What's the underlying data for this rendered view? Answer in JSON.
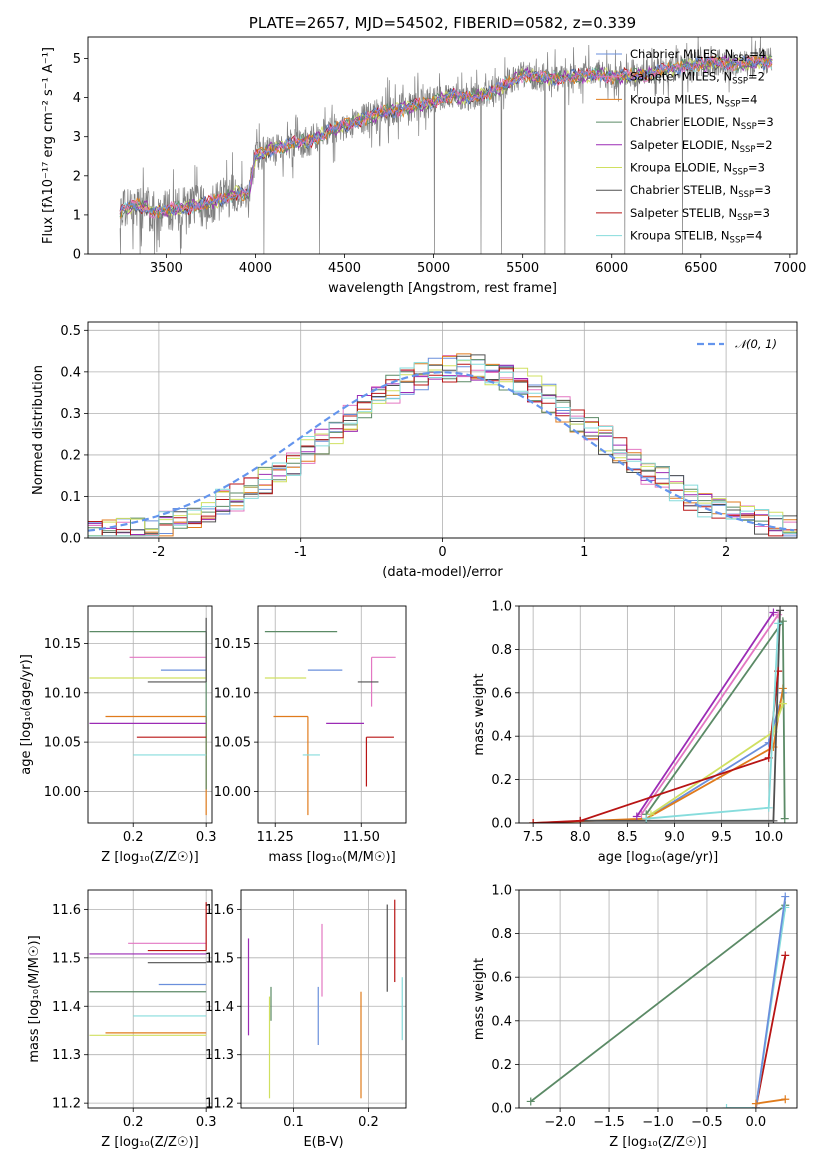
{
  "colors": {
    "chabrier_miles": "#6a8fdc",
    "salpeter_miles": "#e377c2",
    "kroupa_miles": "#e07b1c",
    "chabrier_elodie": "#5b8a66",
    "salpeter_elodie": "#9b2bb5",
    "kroupa_elodie": "#d0e060",
    "chabrier_stelib": "#505050",
    "salpeter_stelib": "#b81414",
    "kroupa_stelib": "#86dcdc",
    "data_gray": "#808080",
    "normal_curve": "#6495ed",
    "grid": "#b0b0b0"
  },
  "chart_data": [
    {
      "id": "spectrum",
      "type": "line",
      "title": "PLATE=2657, MJD=54502, FIBERID=0582, z=0.339",
      "xlabel": "wavelength [Angstrom, rest frame]",
      "ylabel": "Flux [fλ10⁻¹⁷ erg cm⁻² s⁻¹ A⁻¹]",
      "xlim": [
        3060,
        7040
      ],
      "ylim": [
        0,
        5.55
      ],
      "xticks": [
        3500,
        4000,
        4500,
        5000,
        5500,
        6000,
        6500,
        7000
      ],
      "yticks": [
        0,
        1,
        2,
        3,
        4,
        5
      ],
      "grid": false,
      "legend_position": "top-right",
      "legend": [
        {
          "name": "Chabrier MILES, N",
          "sub": "SSP",
          "n": "=4",
          "color_key": "chabrier_miles"
        },
        {
          "name": "Salpeter MILES, N",
          "sub": "SSP",
          "n": "=2",
          "color_key": "salpeter_miles"
        },
        {
          "name": "Kroupa MILES, N",
          "sub": "SSP",
          "n": "=4",
          "color_key": "kroupa_miles"
        },
        {
          "name": "Chabrier ELODIE, N",
          "sub": "SSP",
          "n": "=3",
          "color_key": "chabrier_elodie"
        },
        {
          "name": "Salpeter ELODIE, N",
          "sub": "SSP",
          "n": "=2",
          "color_key": "salpeter_elodie"
        },
        {
          "name": "Kroupa ELODIE, N",
          "sub": "SSP",
          "n": "=3",
          "color_key": "kroupa_elodie"
        },
        {
          "name": "Chabrier STELIB, N",
          "sub": "SSP",
          "n": "=3",
          "color_key": "chabrier_stelib"
        },
        {
          "name": "Salpeter STELIB, N",
          "sub": "SSP",
          "n": "=3",
          "color_key": "salpeter_stelib"
        },
        {
          "name": "Kroupa STELIB, N",
          "sub": "SSP",
          "n": "=4",
          "color_key": "kroupa_stelib"
        }
      ],
      "continuum": [
        [
          3240,
          1.1
        ],
        [
          3330,
          1.25
        ],
        [
          3420,
          1.1
        ],
        [
          3500,
          1.1
        ],
        [
          3600,
          1.2
        ],
        [
          3700,
          1.25
        ],
        [
          3800,
          1.4
        ],
        [
          3900,
          1.55
        ],
        [
          3960,
          1.55
        ],
        [
          4000,
          2.5
        ],
        [
          4100,
          2.7
        ],
        [
          4200,
          2.8
        ],
        [
          4300,
          2.9
        ],
        [
          4400,
          3.1
        ],
        [
          4500,
          3.3
        ],
        [
          4600,
          3.45
        ],
        [
          4700,
          3.6
        ],
        [
          4800,
          3.7
        ],
        [
          4900,
          3.8
        ],
        [
          5000,
          3.9
        ],
        [
          5100,
          4.05
        ],
        [
          5200,
          4.0
        ],
        [
          5300,
          4.1
        ],
        [
          5400,
          4.3
        ],
        [
          5500,
          4.6
        ],
        [
          5600,
          4.5
        ],
        [
          5700,
          4.5
        ],
        [
          5800,
          4.55
        ],
        [
          5900,
          4.6
        ],
        [
          6000,
          4.55
        ],
        [
          6100,
          4.55
        ],
        [
          6200,
          4.6
        ],
        [
          6300,
          4.7
        ],
        [
          6400,
          4.8
        ],
        [
          6500,
          4.85
        ],
        [
          6600,
          4.9
        ],
        [
          6700,
          4.85
        ],
        [
          6800,
          4.9
        ],
        [
          6900,
          4.95
        ]
      ]
    },
    {
      "id": "residuals",
      "type": "line",
      "xlabel": "(data-model)/error",
      "ylabel": "Normed distribution",
      "xlim": [
        -2.5,
        2.5
      ],
      "ylim": [
        0,
        0.52
      ],
      "xticks": [
        -2,
        -1,
        0,
        1,
        2
      ],
      "yticks": [
        0.0,
        0.1,
        0.2,
        0.3,
        0.4,
        0.5
      ],
      "grid": true,
      "legend_position": "top-right",
      "legend": [
        {
          "name": "𝒩(0, 1)",
          "color_key": "normal_curve"
        }
      ]
    },
    {
      "id": "age_vs_Z",
      "type": "scatter",
      "xlabel": "Z [log₁₀(Z/Z☉)]",
      "ylabel": "age  [log₁₀(age/yr)]",
      "xlim": [
        0.138,
        0.308
      ],
      "ylim": [
        9.968,
        10.188
      ],
      "xticks": [
        0.2,
        0.3
      ],
      "yticks": [
        10.0,
        10.05,
        10.1,
        10.15
      ],
      "grid": true,
      "points": [
        {
          "c": "chabrier_miles",
          "x": 0.3,
          "y": 10.123,
          "xerr": [
            0.062,
            0.0
          ],
          "yerr": [
            0.0,
            0.0
          ]
        },
        {
          "c": "salpeter_miles",
          "x": 0.3,
          "y": 10.136,
          "xerr": [
            0.105,
            0.0
          ],
          "yerr": [
            0.0,
            0.0
          ]
        },
        {
          "c": "kroupa_miles",
          "x": 0.3,
          "y": 10.076,
          "xerr": [
            0.138,
            0.0
          ],
          "yerr": [
            0.1,
            0.0
          ]
        },
        {
          "c": "chabrier_elodie",
          "x": 0.3,
          "y": 10.162,
          "xerr": [
            0.16,
            0.0
          ],
          "yerr": [
            0.16,
            0.0
          ]
        },
        {
          "c": "salpeter_elodie",
          "x": 0.3,
          "y": 10.069,
          "xerr": [
            0.16,
            0.0
          ],
          "yerr": [
            0.0,
            0.0
          ]
        },
        {
          "c": "kroupa_elodie",
          "x": 0.3,
          "y": 10.115,
          "xerr": [
            0.16,
            0.0
          ],
          "yerr": [
            0.0,
            0.0
          ]
        },
        {
          "c": "chabrier_stelib",
          "x": 0.3,
          "y": 10.111,
          "xerr": [
            0.08,
            0.0
          ],
          "yerr": [
            0.0,
            0.065
          ]
        },
        {
          "c": "salpeter_stelib",
          "x": 0.3,
          "y": 10.055,
          "xerr": [
            0.095,
            0.0
          ],
          "yerr": [
            0.0,
            0.0
          ]
        },
        {
          "c": "kroupa_stelib",
          "x": 0.3,
          "y": 10.037,
          "xerr": [
            0.1,
            0.0
          ],
          "yerr": [
            0.0,
            0.0
          ]
        }
      ]
    },
    {
      "id": "age_vs_mass",
      "type": "scatter",
      "xlabel": "mass [log₁₀(M/M☉)]",
      "ylabel": "",
      "xlim": [
        11.2,
        11.63
      ],
      "ylim": [
        9.968,
        10.188
      ],
      "xticks": [
        11.25,
        11.5
      ],
      "yticks": [
        10.0,
        10.05,
        10.1,
        10.15
      ],
      "grid": true,
      "points": [
        {
          "c": "chabrier_miles",
          "x": 11.445,
          "y": 10.123,
          "xerr": [
            0.1,
            0.0
          ],
          "yerr": [
            0.0,
            0.0
          ]
        },
        {
          "c": "salpeter_miles",
          "x": 11.53,
          "y": 10.136,
          "xerr": [
            0.0,
            0.07
          ],
          "yerr": [
            0.05,
            0.0
          ]
        },
        {
          "c": "kroupa_miles",
          "x": 11.345,
          "y": 10.076,
          "xerr": [
            0.1,
            0.0
          ],
          "yerr": [
            0.1,
            0.0
          ]
        },
        {
          "c": "chabrier_elodie",
          "x": 11.43,
          "y": 10.162,
          "xerr": [
            0.21,
            0.0
          ],
          "yerr": [
            0.0,
            0.0
          ]
        },
        {
          "c": "salpeter_elodie",
          "x": 11.508,
          "y": 10.069,
          "xerr": [
            0.11,
            0.0
          ],
          "yerr": [
            0.0,
            0.0
          ]
        },
        {
          "c": "kroupa_elodie",
          "x": 11.34,
          "y": 10.115,
          "xerr": [
            0.12,
            0.0
          ],
          "yerr": [
            0.0,
            0.0
          ]
        },
        {
          "c": "chabrier_stelib",
          "x": 11.49,
          "y": 10.111,
          "xerr": [
            0.0,
            0.06
          ],
          "yerr": [
            0.0,
            0.0
          ]
        },
        {
          "c": "salpeter_stelib",
          "x": 11.515,
          "y": 10.055,
          "xerr": [
            0.0,
            0.08
          ],
          "yerr": [
            0.05,
            0.0
          ]
        },
        {
          "c": "kroupa_stelib",
          "x": 11.38,
          "y": 10.037,
          "xerr": [
            0.05,
            0.0
          ],
          "yerr": [
            0.0,
            0.0
          ]
        }
      ]
    },
    {
      "id": "mass_weight_vs_age",
      "type": "line",
      "xlabel": "age  [log₁₀(age/yr)]",
      "ylabel": "mass weight",
      "xlim": [
        7.35,
        10.3
      ],
      "ylim": [
        0,
        1.0
      ],
      "xticks": [
        7.5,
        8.0,
        8.5,
        9.0,
        9.5,
        10.0
      ],
      "yticks": [
        0.0,
        0.2,
        0.4,
        0.6,
        0.8,
        1.0
      ],
      "grid": true,
      "series": [
        {
          "c": "chabrier_miles",
          "x": [
            8.7,
            10.0,
            10.15
          ],
          "y": [
            0.02,
            0.37,
            0.6
          ]
        },
        {
          "c": "salpeter_miles",
          "x": [
            8.65,
            10.1
          ],
          "y": [
            0.04,
            0.96
          ]
        },
        {
          "c": "kroupa_miles",
          "x": [
            7.5,
            8.7,
            10.05,
            10.15
          ],
          "y": [
            0.0,
            0.02,
            0.35,
            0.62
          ]
        },
        {
          "c": "chabrier_elodie",
          "x": [
            8.7,
            10.15,
            10.17
          ],
          "y": [
            0.04,
            0.93,
            0.02
          ]
        },
        {
          "c": "salpeter_elodie",
          "x": [
            8.6,
            10.05
          ],
          "y": [
            0.03,
            0.97
          ]
        },
        {
          "c": "kroupa_elodie",
          "x": [
            8.75,
            10.05,
            10.15
          ],
          "y": [
            0.04,
            0.42,
            0.55
          ]
        },
        {
          "c": "chabrier_stelib",
          "x": [
            8.0,
            10.05,
            10.12
          ],
          "y": [
            0.01,
            0.01,
            0.98
          ]
        },
        {
          "c": "salpeter_stelib",
          "x": [
            7.5,
            8.0,
            10.0,
            10.1
          ],
          "y": [
            0.0,
            0.01,
            0.3,
            0.7
          ]
        },
        {
          "c": "kroupa_stelib",
          "x": [
            8.7,
            10.0,
            10.1
          ],
          "y": [
            0.02,
            0.07,
            0.92
          ]
        }
      ]
    },
    {
      "id": "mass_vs_Z",
      "type": "scatter",
      "xlabel": "Z [log₁₀(Z/Z☉)]",
      "ylabel": "mass [log₁₀(M/M☉)]",
      "xlim": [
        0.138,
        0.308
      ],
      "ylim": [
        11.19,
        11.64
      ],
      "xticks": [
        0.2,
        0.3
      ],
      "yticks": [
        11.2,
        11.3,
        11.4,
        11.5,
        11.6
      ],
      "grid": true,
      "points": [
        {
          "c": "chabrier_miles",
          "x": 0.3,
          "y": 11.445,
          "xerr": [
            0.065,
            0.0
          ],
          "yerr": [
            0.0,
            0.0
          ]
        },
        {
          "c": "salpeter_miles",
          "x": 0.3,
          "y": 11.53,
          "xerr": [
            0.107,
            0.0
          ],
          "yerr": [
            0.0,
            0.0
          ]
        },
        {
          "c": "kroupa_miles",
          "x": 0.3,
          "y": 11.345,
          "xerr": [
            0.138,
            0.0
          ],
          "yerr": [
            0.0,
            0.0
          ]
        },
        {
          "c": "chabrier_elodie",
          "x": 0.3,
          "y": 11.43,
          "xerr": [
            0.16,
            0.0
          ],
          "yerr": [
            0.0,
            0.0
          ]
        },
        {
          "c": "salpeter_elodie",
          "x": 0.3,
          "y": 11.508,
          "xerr": [
            0.16,
            0.0
          ],
          "yerr": [
            0.0,
            0.0
          ]
        },
        {
          "c": "kroupa_elodie",
          "x": 0.3,
          "y": 11.34,
          "xerr": [
            0.16,
            0.0
          ],
          "yerr": [
            0.0,
            0.0
          ]
        },
        {
          "c": "chabrier_stelib",
          "x": 0.3,
          "y": 11.49,
          "xerr": [
            0.08,
            0.0
          ],
          "yerr": [
            0.0,
            0.0
          ]
        },
        {
          "c": "salpeter_stelib",
          "x": 0.3,
          "y": 11.515,
          "xerr": [
            0.08,
            0.0
          ],
          "yerr": [
            0.0,
            0.1
          ]
        },
        {
          "c": "kroupa_stelib",
          "x": 0.3,
          "y": 11.38,
          "xerr": [
            0.1,
            0.0
          ],
          "yerr": [
            0.0,
            0.0
          ]
        }
      ]
    },
    {
      "id": "mass_vs_ebv",
      "type": "scatter",
      "xlabel": "E(B-V)",
      "ylabel": "",
      "xlim": [
        0.03,
        0.25
      ],
      "ylim": [
        11.19,
        11.64
      ],
      "xticks": [
        0.1,
        0.2
      ],
      "yticks": [
        11.2,
        11.3,
        11.4,
        11.5,
        11.6
      ],
      "grid": true,
      "points": [
        {
          "c": "chabrier_miles",
          "x": 0.133,
          "y": 11.4,
          "xerr": [
            0,
            0
          ],
          "yerr": [
            0.08,
            0.04
          ]
        },
        {
          "c": "salpeter_miles",
          "x": 0.138,
          "y": 11.5,
          "xerr": [
            0,
            0
          ],
          "yerr": [
            0.08,
            0.07
          ]
        },
        {
          "c": "kroupa_miles",
          "x": 0.19,
          "y": 11.32,
          "xerr": [
            0,
            0
          ],
          "yerr": [
            0.11,
            0.11
          ]
        },
        {
          "c": "chabrier_elodie",
          "x": 0.07,
          "y": 11.41,
          "xerr": [
            0,
            0
          ],
          "yerr": [
            0.04,
            0.03
          ]
        },
        {
          "c": "salpeter_elodie",
          "x": 0.04,
          "y": 11.44,
          "xerr": [
            0,
            0
          ],
          "yerr": [
            0.1,
            0.1
          ]
        },
        {
          "c": "kroupa_elodie",
          "x": 0.068,
          "y": 11.31,
          "xerr": [
            0,
            0
          ],
          "yerr": [
            0.1,
            0.11
          ]
        },
        {
          "c": "chabrier_stelib",
          "x": 0.225,
          "y": 11.51,
          "xerr": [
            0,
            0
          ],
          "yerr": [
            0.08,
            0.1
          ]
        },
        {
          "c": "salpeter_stelib",
          "x": 0.235,
          "y": 11.54,
          "xerr": [
            0,
            0
          ],
          "yerr": [
            0.09,
            0.08
          ]
        },
        {
          "c": "kroupa_stelib",
          "x": 0.245,
          "y": 11.4,
          "xerr": [
            0,
            0
          ],
          "yerr": [
            0.07,
            0.06
          ]
        }
      ]
    },
    {
      "id": "mass_weight_vs_Z",
      "type": "line",
      "xlabel": "Z [log₁₀(Z/Z☉)]",
      "ylabel": "mass weight",
      "xlim": [
        -2.42,
        0.42
      ],
      "ylim": [
        0,
        1.0
      ],
      "xticks": [
        -2.0,
        -1.5,
        -1.0,
        -0.5,
        0.0
      ],
      "yticks": [
        0.0,
        0.2,
        0.4,
        0.6,
        0.8,
        1.0
      ],
      "grid": true,
      "series": [
        {
          "c": "chabrier_elodie",
          "x": [
            -2.3,
            0.3
          ],
          "y": [
            0.03,
            0.93
          ]
        },
        {
          "c": "salpeter_stelib",
          "x": [
            0.0,
            0.3
          ],
          "y": [
            0.0,
            0.7
          ]
        },
        {
          "c": "kroupa_stelib",
          "x": [
            -0.3,
            0.0,
            0.3
          ],
          "y": [
            0.0,
            0.0,
            0.92
          ]
        },
        {
          "c": "chabrier_miles",
          "x": [
            0.0,
            0.3
          ],
          "y": [
            0.0,
            0.97
          ]
        },
        {
          "c": "kroupa_miles",
          "x": [
            0.0,
            0.3
          ],
          "y": [
            0.02,
            0.04
          ]
        }
      ]
    }
  ]
}
